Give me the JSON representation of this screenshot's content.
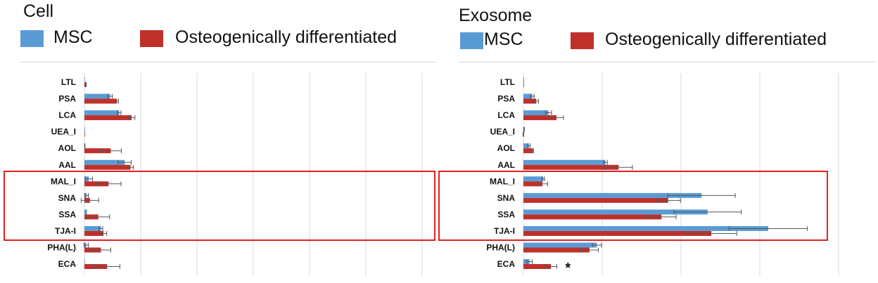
{
  "colors": {
    "msc": "#5b9bd5",
    "osteo": "#c0302b",
    "grid": "#d9d9d9",
    "highlight": "#e02020",
    "errorbar": "#555555"
  },
  "legend": {
    "msc_label": "MSC",
    "osteo_label": "Osteogenically differentiated"
  },
  "chart_data": [
    {
      "type": "bar",
      "orientation": "horizontal",
      "title": "Cell",
      "categories": [
        "LTL",
        "PSA",
        "LCA",
        "UEA_I",
        "AOL",
        "AAL",
        "MAL_I",
        "SNA",
        "SSA",
        "TJA-I",
        "PHA(L)",
        "ECA"
      ],
      "series": [
        {
          "name": "MSC",
          "values": [
            0,
            70,
            95,
            0,
            1,
            110,
            12,
            6,
            7,
            45,
            5,
            0
          ],
          "errors": [
            0,
            6,
            5,
            0,
            0.5,
            18,
            10,
            5,
            0,
            5,
            6,
            0
          ]
        },
        {
          "name": "Osteogenically differentiated",
          "values": [
            4,
            89,
            129,
            0,
            72,
            126,
            66,
            15,
            38,
            52,
            45,
            62
          ],
          "errors": [
            1,
            4,
            9,
            0,
            29,
            8,
            34,
            24,
            31,
            9,
            27,
            35
          ]
        }
      ],
      "highlight_categories": [
        "MAL_I",
        "SNA",
        "SSA",
        "TJA-I"
      ],
      "annotations": [],
      "xlim": [
        0,
        500
      ],
      "grid": true,
      "legend_position": "top"
    },
    {
      "type": "bar",
      "orientation": "horizontal",
      "title": "Exosome",
      "categories": [
        "LTL",
        "PSA",
        "LCA",
        "UEA_I",
        "AOL",
        "AAL",
        "MAL_I",
        "SNA",
        "SSA",
        "TJA-I",
        "PHA(L)",
        "ECA"
      ],
      "series": [
        {
          "name": "MSC",
          "values": [
            1,
            29,
            82,
            2,
            18,
            268,
            65,
            582,
            602,
            800,
            240,
            20
          ],
          "errors": [
            0,
            6,
            10,
            1,
            4,
            6,
            4,
            110,
            110,
            128,
            15,
            9
          ]
        },
        {
          "name": "Osteogenically differentiated",
          "values": [
            0,
            42,
            108,
            0,
            31,
            311,
            62,
            473,
            451,
            614,
            216,
            90
          ],
          "errors": [
            0,
            7,
            23,
            1,
            2,
            45,
            17,
            40,
            48,
            83,
            29,
            19
          ]
        }
      ],
      "highlight_categories": [
        "MAL_I",
        "SNA",
        "SSA",
        "TJA-I"
      ],
      "annotations": [
        {
          "category": "ECA",
          "text": "*"
        }
      ],
      "xlim": [
        0,
        1100
      ],
      "grid": true,
      "legend_position": "top"
    }
  ]
}
